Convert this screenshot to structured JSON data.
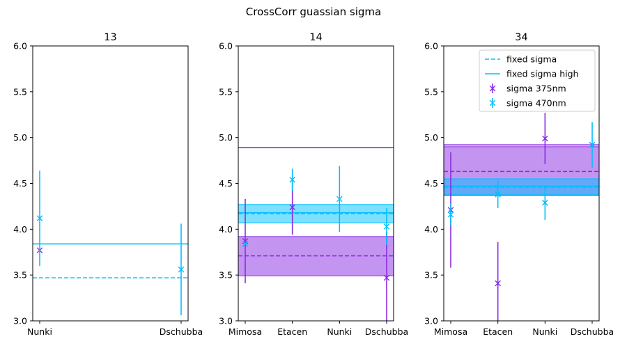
{
  "suptitle": "CrossCorr guassian sigma",
  "colors": {
    "purple": "#8a2be2",
    "cyan": "#00bfff",
    "cyan_band": "#00bfff",
    "purple_band": "#8a2be2"
  },
  "legend": {
    "placement": "upper-right of third panel",
    "entries": [
      {
        "label": "fixed sigma",
        "style": "dashed-line",
        "color": "#00bfff"
      },
      {
        "label": "fixed sigma high",
        "style": "solid-line",
        "color": "#00bfff"
      },
      {
        "label": "sigma 375nm",
        "style": "errorbar",
        "color": "#8a2be2"
      },
      {
        "label": "sigma 470nm",
        "style": "errorbar",
        "color": "#00bfff"
      }
    ]
  },
  "chart_data": [
    {
      "type": "errorbar",
      "title": "13",
      "categories": [
        "Nunki",
        "Dschubba"
      ],
      "ylim": [
        3.0,
        6.0
      ],
      "yticks": [
        "3.0",
        "3.5",
        "4.0",
        "4.5",
        "5.0",
        "5.5",
        "6.0"
      ],
      "series": [
        {
          "name": "sigma 375nm",
          "color": "#8a2be2",
          "points": [
            {
              "x": 0,
              "y": 3.77,
              "err": 0.0
            }
          ]
        },
        {
          "name": "sigma 470nm",
          "color": "#00bfff",
          "points": [
            {
              "x": 0,
              "y": 4.12,
              "err": 0.52
            },
            {
              "x": 1,
              "y": 3.56,
              "err": 0.5
            }
          ]
        }
      ],
      "hlines": [
        {
          "y": 3.47,
          "color": "#00bfff",
          "style": "dashed"
        },
        {
          "y": 3.84,
          "color": "#00bfff",
          "style": "solid"
        }
      ],
      "bands": []
    },
    {
      "type": "errorbar",
      "title": "14",
      "categories": [
        "Mimosa",
        "Etacen",
        "Nunki",
        "Dschubba"
      ],
      "ylim": [
        3.0,
        6.0
      ],
      "yticks": [
        "3.0",
        "3.5",
        "4.0",
        "4.5",
        "5.0",
        "5.5",
        "6.0"
      ],
      "series": [
        {
          "name": "sigma 375nm",
          "color": "#8a2be2",
          "points": [
            {
              "x": 0,
              "y": 3.87,
              "err": 0.46
            },
            {
              "x": 1,
              "y": 4.24,
              "err": 0.3
            },
            {
              "x": 3,
              "y": 3.47,
              "err": 0.5
            }
          ]
        },
        {
          "name": "sigma 470nm",
          "color": "#00bfff",
          "points": [
            {
              "x": 0,
              "y": 3.84,
              "err": 0.0
            },
            {
              "x": 1,
              "y": 4.54,
              "err": 0.12
            },
            {
              "x": 2,
              "y": 4.33,
              "err": 0.36
            },
            {
              "x": 3,
              "y": 4.03,
              "err": 0.2
            }
          ]
        }
      ],
      "hlines": [
        {
          "y": 4.89,
          "color": "#8a2be2",
          "style": "solid"
        },
        {
          "y": 3.71,
          "color": "#8a2be2",
          "style": "dashed"
        },
        {
          "y": 4.17,
          "color": "#00bfff",
          "style": "dashed"
        },
        {
          "y": 4.18,
          "color": "#00bfff",
          "style": "solid"
        }
      ],
      "bands": [
        {
          "y0": 3.49,
          "y1": 3.92,
          "color": "#8a2be2"
        },
        {
          "y0": 4.07,
          "y1": 4.27,
          "color": "#00bfff"
        }
      ]
    },
    {
      "type": "errorbar",
      "title": "34",
      "categories": [
        "Mimosa",
        "Etacen",
        "Nunki",
        "Dschubba"
      ],
      "ylim": [
        3.0,
        6.0
      ],
      "yticks": [
        "3.0",
        "3.5",
        "4.0",
        "4.5",
        "5.0",
        "5.5",
        "6.0"
      ],
      "series": [
        {
          "name": "sigma 375nm",
          "color": "#8a2be2",
          "points": [
            {
              "x": 0,
              "y": 4.21,
              "err": 0.63
            },
            {
              "x": 1,
              "y": 3.41,
              "err": 0.45
            },
            {
              "x": 2,
              "y": 4.99,
              "err": 0.28
            },
            {
              "x": 3,
              "y": 4.92,
              "err": 0.0
            }
          ]
        },
        {
          "name": "sigma 470nm",
          "color": "#00bfff",
          "points": [
            {
              "x": 0,
              "y": 4.16,
              "err": 0.12
            },
            {
              "x": 1,
              "y": 4.38,
              "err": 0.15
            },
            {
              "x": 2,
              "y": 4.29,
              "err": 0.19
            },
            {
              "x": 3,
              "y": 4.92,
              "err": 0.25
            }
          ]
        }
      ],
      "hlines": [
        {
          "y": 4.92,
          "color": "#8a2be2",
          "style": "solid"
        },
        {
          "y": 4.63,
          "color": "#8a2be2",
          "style": "dashed"
        },
        {
          "y": 4.46,
          "color": "#00bfff",
          "style": "dashed"
        },
        {
          "y": 4.47,
          "color": "#00bfff",
          "style": "solid"
        }
      ],
      "bands": [
        {
          "y0": 4.37,
          "y1": 4.9,
          "color": "#8a2be2"
        },
        {
          "y0": 4.38,
          "y1": 4.55,
          "color": "#00bfff"
        }
      ]
    }
  ]
}
